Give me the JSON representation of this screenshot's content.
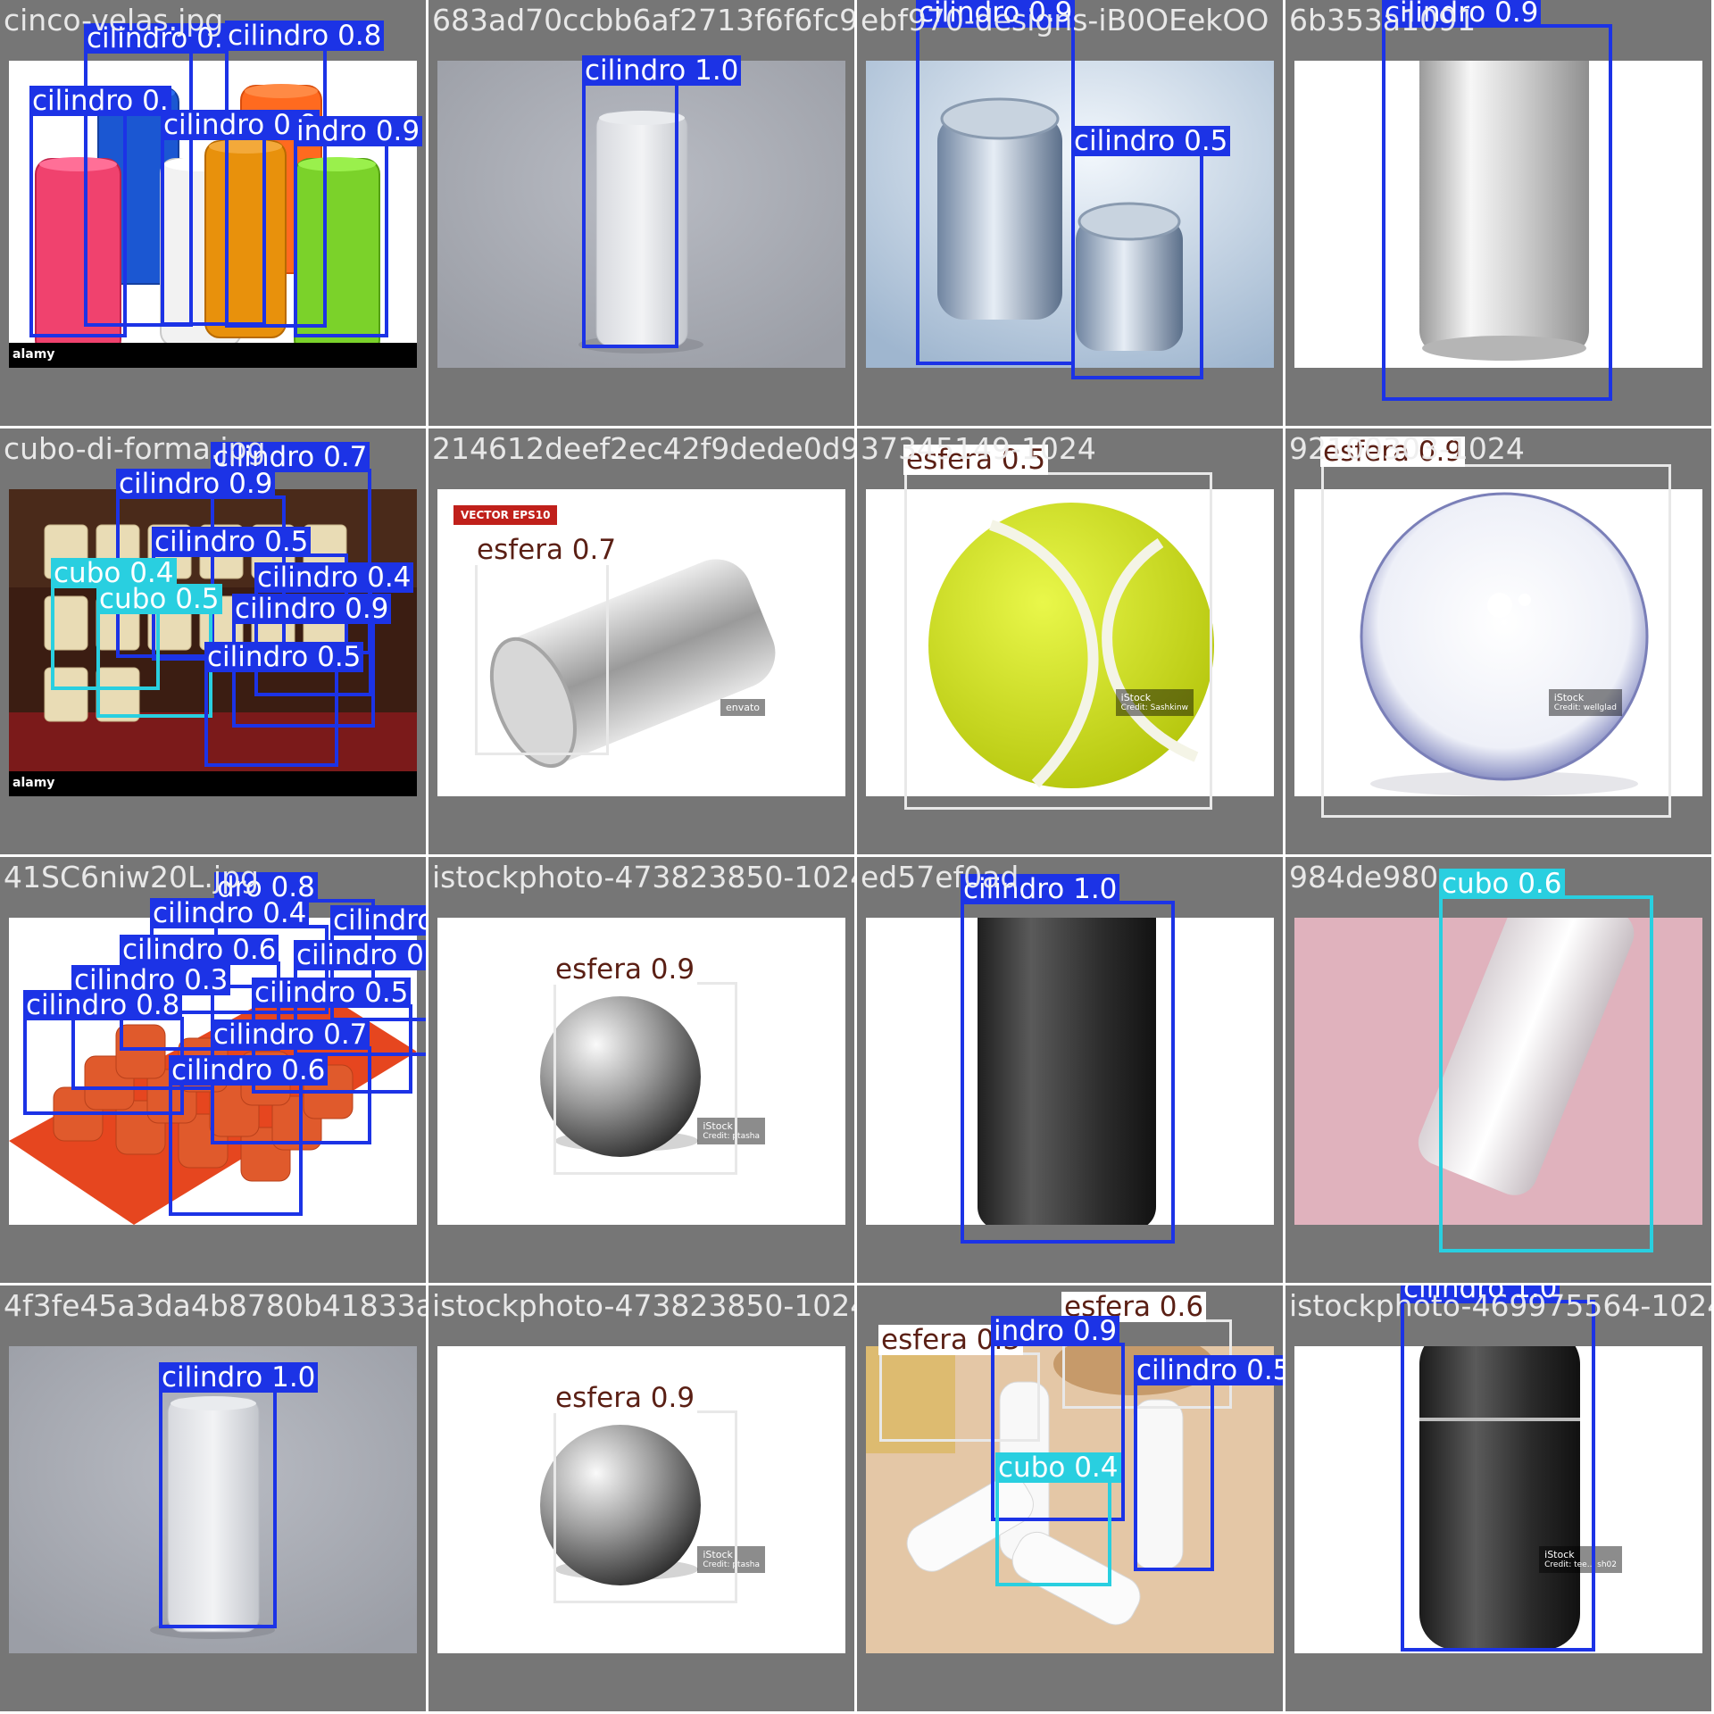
{
  "colors": {
    "cilindro": "#1c33e6",
    "cubo": "#29cfe0",
    "esfera": "#e8e8e8",
    "tile_background": "#767676"
  },
  "tiles": [
    {
      "filename": "cinco-velas.jpg",
      "scene": "colored-candles",
      "watermark": "alamy",
      "detections": [
        {
          "label": "cilindro 0.",
          "class": "cilindro"
        },
        {
          "label": "cilindro 0.8",
          "class": "cilindro"
        },
        {
          "label": "cilindro 0.",
          "class": "cilindro"
        },
        {
          "label": "cilindro 0.9",
          "class": "cilindro"
        },
        {
          "label": "indro 0.9",
          "class": "cilindro"
        }
      ]
    },
    {
      "filename": "683ad70ccbb6af2713f6f6fc9",
      "scene": "white-can-gray",
      "watermark": "",
      "detections": [
        {
          "label": "cilindro 1.0",
          "class": "cilindro"
        }
      ]
    },
    {
      "filename": "ebf970-designs-iB0OEekOO",
      "scene": "two-cans-blue",
      "watermark": "",
      "detections": [
        {
          "label": "cilindro 0.9",
          "class": "cilindro"
        },
        {
          "label": "cilindro 0.5",
          "class": "cilindro"
        }
      ]
    },
    {
      "filename": "6b353a1091",
      "scene": "silver-can-white",
      "watermark": "",
      "detections": [
        {
          "label": "cilindro 0.9",
          "class": "cilindro"
        }
      ]
    },
    {
      "filename": "cubo-di-forma.jpg",
      "scene": "candle-blocks",
      "watermark": "alamy",
      "detections": [
        {
          "label": "cilindro 0.7",
          "class": "cilindro"
        },
        {
          "label": "cilindro 0.9",
          "class": "cilindro"
        },
        {
          "label": "cilindro 0.5",
          "class": "cilindro"
        },
        {
          "label": "cubo 0.4",
          "class": "cubo"
        },
        {
          "label": "cilindro 0.4",
          "class": "cilindro"
        },
        {
          "label": "cubo 0.5",
          "class": "cubo"
        },
        {
          "label": "cilindro 0.9",
          "class": "cilindro"
        },
        {
          "label": "cilindro 0.5",
          "class": "cilindro"
        }
      ]
    },
    {
      "filename": "214612deef2ec42f9dede0d9",
      "scene": "can-on-side",
      "watermark": "envato",
      "badge": "VECTOR EPS10",
      "detections": [
        {
          "label": "esfera 0.7",
          "class": "esfera"
        }
      ]
    },
    {
      "filename": "37345149-1024",
      "scene": "tennis-ball",
      "watermark": "iStock",
      "credit": "Credit: Sashkinw",
      "detections": [
        {
          "label": "esfera 0.5",
          "class": "esfera"
        }
      ]
    },
    {
      "filename": "92100303-1024",
      "scene": "glass-sphere",
      "watermark": "iStock",
      "credit": "Credit: wellglad",
      "detections": [
        {
          "label": "esfera 0.9",
          "class": "esfera"
        }
      ]
    },
    {
      "filename": "41SC6niw20L.jpg",
      "scene": "silicone-mold",
      "watermark": "",
      "detections": [
        {
          "label": "dro 0.8",
          "class": "cilindro"
        },
        {
          "label": "cilindro 0.4",
          "class": "cilindro"
        },
        {
          "label": "cilindro 0.9",
          "class": "cilindro"
        },
        {
          "label": "cilindro 0.6",
          "class": "cilindro"
        },
        {
          "label": "cilindro 0.6",
          "class": "cilindro"
        },
        {
          "label": "cilindro 0.3",
          "class": "cilindro"
        },
        {
          "label": "cilindro 0.5",
          "class": "cilindro"
        },
        {
          "label": "cilindro 0.8",
          "class": "cilindro"
        },
        {
          "label": "cilindro 0.7",
          "class": "cilindro"
        },
        {
          "label": "cilindro 0.6",
          "class": "cilindro"
        }
      ]
    },
    {
      "filename": "istockphoto-473823850-1024",
      "scene": "steel-ball",
      "watermark": "iStock",
      "credit": "Credit: ptasha",
      "detections": [
        {
          "label": "esfera 0.9",
          "class": "esfera"
        }
      ]
    },
    {
      "filename": "ed57ef0ad",
      "scene": "black-can",
      "watermark": "",
      "detections": [
        {
          "label": "cilindro 1.0",
          "class": "cilindro"
        }
      ]
    },
    {
      "filename": "984de980",
      "scene": "tilted-can-pink",
      "watermark": "",
      "detections": [
        {
          "label": "cubo 0.6",
          "class": "cubo"
        }
      ]
    },
    {
      "filename": "4f3fe45a3da4b8780b41833a",
      "scene": "white-can-gray",
      "watermark": "",
      "detections": [
        {
          "label": "cilindro 1.0",
          "class": "cilindro"
        }
      ]
    },
    {
      "filename": "istockphoto-473823850-1024",
      "scene": "steel-ball",
      "watermark": "iStock",
      "credit": "Credit: ptasha",
      "detections": [
        {
          "label": "esfera 0.9",
          "class": "esfera"
        }
      ]
    },
    {
      "filename": "",
      "scene": "white-candles-wood",
      "watermark": "",
      "detections": [
        {
          "label": "esfera 0.6",
          "class": "esfera"
        },
        {
          "label": "esfera 0.3",
          "class": "esfera"
        },
        {
          "label": "indro 0.9",
          "class": "cilindro"
        },
        {
          "label": "cilindro 0.5",
          "class": "cilindro"
        },
        {
          "label": "cubo 0.4",
          "class": "cubo"
        }
      ]
    },
    {
      "filename": "istockphoto-469975564-1024",
      "scene": "black-canister",
      "watermark": "iStock",
      "credit": "Credit: tee... sh02",
      "detections": [
        {
          "label": "cilindro 1.0",
          "class": "cilindro"
        }
      ]
    }
  ]
}
